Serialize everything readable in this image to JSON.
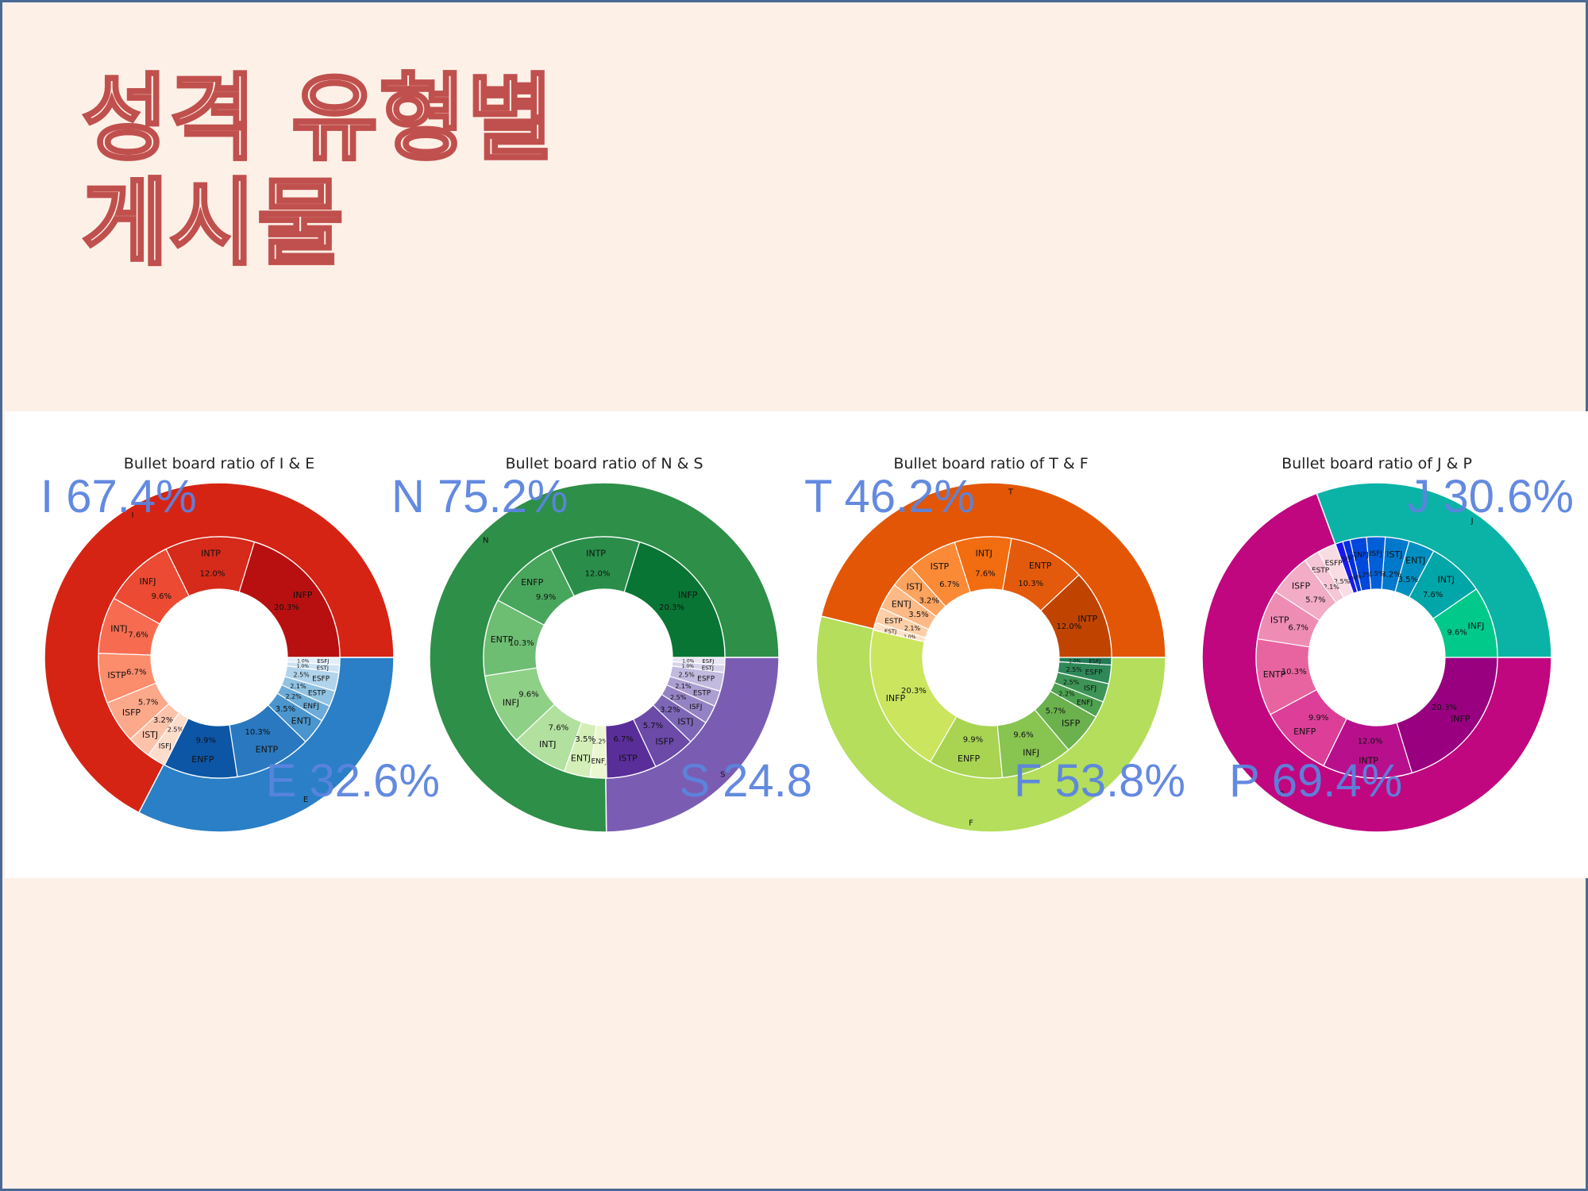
{
  "slide": {
    "title_line1": "성격 유형별",
    "title_line2": "게시물"
  },
  "chart_data": [
    {
      "type": "pie",
      "subtype": "nested-donut",
      "title": "Bullet board ratio of I & E",
      "outer": [
        {
          "label": "I",
          "value": 67.4,
          "color": "#d62414"
        },
        {
          "label": "E",
          "value": 32.6,
          "color": "#2a7fc6"
        }
      ],
      "big_labels": [
        {
          "text": "I 67.4%",
          "anchor": "top-left"
        },
        {
          "text": "E 32.6%",
          "anchor": "bottom-right"
        }
      ],
      "inner": [
        {
          "label": "INFP",
          "value": 20.3,
          "pct": "20.3%",
          "color": "#b81010"
        },
        {
          "label": "INTP",
          "value": 12.0,
          "pct": "12.0%",
          "color": "#d62a1a"
        },
        {
          "label": "INFJ",
          "value": 9.6,
          "pct": "9.6%",
          "color": "#ec4a32"
        },
        {
          "label": "INTJ",
          "value": 7.6,
          "pct": "7.6%",
          "color": "#f76c50"
        },
        {
          "label": "ISTP",
          "value": 6.7,
          "pct": "6.7%",
          "color": "#fb8c6c"
        },
        {
          "label": "ISFP",
          "value": 5.7,
          "pct": "5.7%",
          "color": "#fca88a"
        },
        {
          "label": "ISTJ",
          "value": 3.2,
          "pct": "3.2%",
          "color": "#fdc3aa"
        },
        {
          "label": "ISFJ",
          "value": 2.5,
          "pct": "2.5%",
          "color": "#fedccc"
        },
        {
          "label": "ENFP",
          "value": 9.9,
          "pct": "9.9%",
          "color": "#0d56a6"
        },
        {
          "label": "ENTP",
          "value": 10.3,
          "pct": "10.3%",
          "color": "#2a78bf"
        },
        {
          "label": "ENTJ",
          "value": 3.5,
          "pct": "3.5%",
          "color": "#4a95cd"
        },
        {
          "label": "ENFJ",
          "value": 2.2,
          "pct": "2.2%",
          "color": "#6cabd8"
        },
        {
          "label": "ESTP",
          "value": 2.1,
          "pct": "2.1%",
          "color": "#90c2e2"
        },
        {
          "label": "ESFP",
          "value": 2.5,
          "pct": "2.5%",
          "color": "#b1d4ec"
        },
        {
          "label": "ESTJ",
          "value": 1.0,
          "pct": "1.0%",
          "color": "#cde3f3"
        },
        {
          "label": "ESFJ",
          "value": 1.0,
          "pct": "1.0%",
          "color": "#e2eef9"
        }
      ]
    },
    {
      "type": "pie",
      "subtype": "nested-donut",
      "title": "Bullet board ratio of N & S",
      "outer": [
        {
          "label": "N",
          "value": 75.2,
          "color": "#2e8f48"
        },
        {
          "label": "S",
          "value": 24.8,
          "color": "#7a5db3"
        }
      ],
      "big_labels": [
        {
          "text": "N 75.2%",
          "anchor": "top-left"
        },
        {
          "text": "S 24.8",
          "anchor": "bottom-right"
        }
      ],
      "inner": [
        {
          "label": "INFP",
          "value": 20.3,
          "pct": "20.3%",
          "color": "#087535"
        },
        {
          "label": "INTP",
          "value": 12.0,
          "pct": "12.0%",
          "color": "#2a8e4a"
        },
        {
          "label": "ENFP",
          "value": 9.9,
          "pct": "9.9%",
          "color": "#48a55c"
        },
        {
          "label": "ENTP",
          "value": 10.3,
          "pct": "10.3%",
          "color": "#6dbd72"
        },
        {
          "label": "INFJ",
          "value": 9.6,
          "pct": "9.6%",
          "color": "#8fd087"
        },
        {
          "label": "INTJ",
          "value": 7.6,
          "pct": "7.6%",
          "color": "#b2e09f"
        },
        {
          "label": "ENTJ",
          "value": 3.5,
          "pct": "3.5%",
          "color": "#d4eeb8"
        },
        {
          "label": "ENFJ",
          "value": 2.2,
          "pct": "2.2%",
          "color": "#eaf7d0"
        },
        {
          "label": "ISTP",
          "value": 6.7,
          "pct": "6.7%",
          "color": "#5a2e99"
        },
        {
          "label": "ISFP",
          "value": 5.7,
          "pct": "5.7%",
          "color": "#6b4aa8"
        },
        {
          "label": "ISTJ",
          "value": 3.2,
          "pct": "3.2%",
          "color": "#7d66b6"
        },
        {
          "label": "ISFJ",
          "value": 2.5,
          "pct": "2.5%",
          "color": "#9483c4"
        },
        {
          "label": "ESTP",
          "value": 2.1,
          "pct": "2.1%",
          "color": "#ab9fd2"
        },
        {
          "label": "ESFP",
          "value": 2.5,
          "pct": "2.5%",
          "color": "#c2bbdf"
        },
        {
          "label": "ESTJ",
          "value": 1.0,
          "pct": "1.0%",
          "color": "#d7d3ea"
        },
        {
          "label": "ESFJ",
          "value": 1.0,
          "pct": "1.0%",
          "color": "#e8e6f3"
        }
      ]
    },
    {
      "type": "pie",
      "subtype": "nested-donut",
      "title": "Bullet board ratio of T & F",
      "outer": [
        {
          "label": "T",
          "value": 46.2,
          "color": "#e35605"
        },
        {
          "label": "F",
          "value": 53.8,
          "color": "#b4de5c"
        }
      ],
      "big_labels": [
        {
          "text": "T 46.2%",
          "anchor": "top-left"
        },
        {
          "text": "F 53.8%",
          "anchor": "bottom-right"
        }
      ],
      "inner": [
        {
          "label": "INTP",
          "value": 12.0,
          "pct": "12.0%",
          "color": "#c04400"
        },
        {
          "label": "ENTP",
          "value": 10.3,
          "pct": "10.3%",
          "color": "#e35a0c"
        },
        {
          "label": "INTJ",
          "value": 7.6,
          "pct": "7.6%",
          "color": "#f26c10"
        },
        {
          "label": "ISTP",
          "value": 6.7,
          "pct": "6.7%",
          "color": "#fb8a36"
        },
        {
          "label": "ISTJ",
          "value": 3.2,
          "pct": "3.2%",
          "color": "#fca35e"
        },
        {
          "label": "ENTJ",
          "value": 3.5,
          "pct": "3.5%",
          "color": "#fdba86"
        },
        {
          "label": "ESTP",
          "value": 2.1,
          "pct": "2.1%",
          "color": "#fdcfa8"
        },
        {
          "label": "ESTJ",
          "value": 1.0,
          "pct": "1.0%",
          "color": "#fee2c8"
        },
        {
          "label": "INFP",
          "value": 20.3,
          "pct": "20.3%",
          "color": "#cbe55f"
        },
        {
          "label": "ENFP",
          "value": 9.9,
          "pct": "9.9%",
          "color": "#a8d452"
        },
        {
          "label": "INFJ",
          "value": 9.6,
          "pct": "9.6%",
          "color": "#88c450"
        },
        {
          "label": "ISFP",
          "value": 5.7,
          "pct": "5.7%",
          "color": "#6bb14e"
        },
        {
          "label": "ENFJ",
          "value": 2.2,
          "pct": "2.2%",
          "color": "#4ea150"
        },
        {
          "label": "ISFJ",
          "value": 2.5,
          "pct": "2.5%",
          "color": "#3d9456"
        },
        {
          "label": "ESFP",
          "value": 2.5,
          "pct": "2.5%",
          "color": "#2f8858"
        },
        {
          "label": "ESFJ",
          "value": 1.0,
          "pct": "1.0%",
          "color": "#237b56"
        }
      ]
    },
    {
      "type": "pie",
      "subtype": "nested-donut",
      "title": "Bullet board ratio of J & P",
      "outer": [
        {
          "label": "J",
          "value": 30.6,
          "color": "#0bb3a6"
        },
        {
          "label": "P",
          "value": 69.4,
          "color": "#c0077f"
        }
      ],
      "big_labels": [
        {
          "text": "J 30.6%",
          "anchor": "top-right"
        },
        {
          "text": "P 69.4%",
          "anchor": "bottom-left"
        }
      ],
      "inner": [
        {
          "label": "INFJ",
          "value": 9.6,
          "pct": "9.6%",
          "color": "#00c98a"
        },
        {
          "label": "INTJ",
          "value": 7.6,
          "pct": "7.6%",
          "color": "#00a6a8"
        },
        {
          "label": "ENTJ",
          "value": 3.5,
          "pct": "3.5%",
          "color": "#008fc0"
        },
        {
          "label": "ISTJ",
          "value": 3.2,
          "pct": "3.2%",
          "color": "#0078cc"
        },
        {
          "label": "ISFJ",
          "value": 2.5,
          "pct": "2.5%",
          "color": "#005fd6"
        },
        {
          "label": "ENFJ",
          "value": 2.2,
          "pct": "2.2%",
          "color": "#0047dc"
        },
        {
          "label": "ESTJ",
          "value": 1.0,
          "pct": "1.0%",
          "color": "#0030e0"
        },
        {
          "label": "ESFJ",
          "value": 1.0,
          "pct": "1.0%",
          "color": "#1818ee"
        },
        {
          "label": "ESFP",
          "value": 2.5,
          "pct": "2.5%",
          "color": "#f8dce4"
        },
        {
          "label": "ESTP",
          "value": 2.1,
          "pct": "2.1%",
          "color": "#f6c6d6"
        },
        {
          "label": "ISFP",
          "value": 5.7,
          "pct": "5.7%",
          "color": "#f2acc6"
        },
        {
          "label": "ISTP",
          "value": 6.7,
          "pct": "6.7%",
          "color": "#ee8cb4"
        },
        {
          "label": "ENTP",
          "value": 10.3,
          "pct": "10.3%",
          "color": "#e864a0"
        },
        {
          "label": "ENFP",
          "value": 9.9,
          "pct": "9.9%",
          "color": "#dc3e98"
        },
        {
          "label": "INTP",
          "value": 12.0,
          "pct": "12.0%",
          "color": "#b8108c"
        },
        {
          "label": "INFP",
          "value": 20.3,
          "pct": "20.3%",
          "color": "#980080"
        }
      ]
    }
  ]
}
